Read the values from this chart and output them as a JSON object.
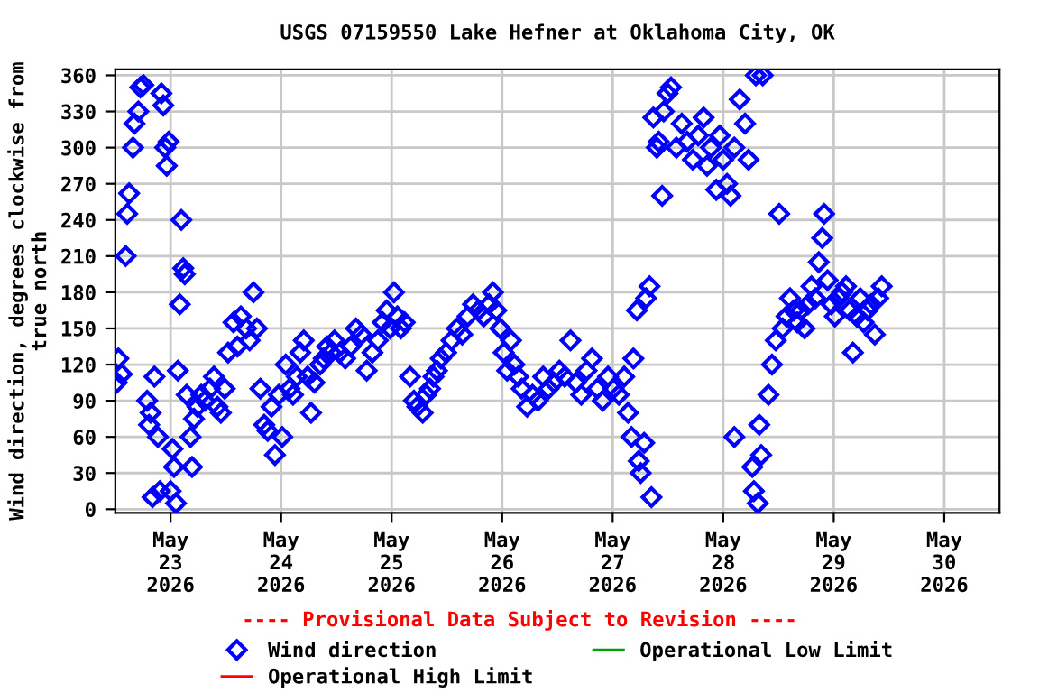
{
  "chart_data": {
    "type": "scatter",
    "title": "USGS 07159550 Lake Hefner at Oklahoma City, OK",
    "ylabel": "Wind direction, degrees clockwise from\ntrue north",
    "annotations": [
      "---- Provisional Data Subject to Revision ----"
    ],
    "xlim": [
      "2026-05-22T12:00",
      "2026-05-30T12:00"
    ],
    "xticks": [
      {
        "value": "2026-05-23",
        "label": "May\n23\n2026"
      },
      {
        "value": "2026-05-24",
        "label": "May\n24\n2026"
      },
      {
        "value": "2026-05-25",
        "label": "May\n25\n2026"
      },
      {
        "value": "2026-05-26",
        "label": "May\n26\n2026"
      },
      {
        "value": "2026-05-27",
        "label": "May\n27\n2026"
      },
      {
        "value": "2026-05-28",
        "label": "May\n28\n2026"
      },
      {
        "value": "2026-05-29",
        "label": "May\n29\n2026"
      },
      {
        "value": "2026-05-30",
        "label": "May\n30\n2026"
      }
    ],
    "ylim": [
      -3,
      365
    ],
    "yticks": [
      0,
      30,
      60,
      90,
      120,
      150,
      180,
      210,
      240,
      270,
      300,
      330,
      360
    ],
    "grid": true,
    "legend": "bottom",
    "marker": "diamond",
    "series": [
      {
        "name": "Wind direction",
        "color": "#0000ff",
        "x": [
          "2026-05-22T12:20",
          "2026-05-22T12:40",
          "2026-05-22T13:25",
          "2026-05-22T14:15",
          "2026-05-22T14:35",
          "2026-05-22T15:00",
          "2026-05-22T15:50",
          "2026-05-22T16:10",
          "2026-05-22T17:00",
          "2026-05-22T17:25",
          "2026-05-22T18:05",
          "2026-05-22T18:55",
          "2026-05-22T19:20",
          "2026-05-22T19:40",
          "2026-05-22T20:05",
          "2026-05-22T20:30",
          "2026-05-22T21:15",
          "2026-05-22T21:40",
          "2026-05-22T22:00",
          "2026-05-22T22:25",
          "2026-05-22T22:50",
          "2026-05-22T23:10",
          "2026-05-22T23:35",
          "2026-05-23T00:00",
          "2026-05-23T00:25",
          "2026-05-23T00:45",
          "2026-05-23T01:10",
          "2026-05-23T01:35",
          "2026-05-23T02:00",
          "2026-05-23T02:20",
          "2026-05-23T02:45",
          "2026-05-23T03:05",
          "2026-05-23T03:30",
          "2026-05-23T04:20",
          "2026-05-23T04:40",
          "2026-05-23T05:05",
          "2026-05-23T05:50",
          "2026-05-23T06:40",
          "2026-05-23T07:25",
          "2026-05-23T08:35",
          "2026-05-23T09:25",
          "2026-05-23T10:10",
          "2026-05-23T10:55",
          "2026-05-23T11:45",
          "2026-05-23T12:30",
          "2026-05-23T13:40",
          "2026-05-23T14:30",
          "2026-05-23T15:15",
          "2026-05-23T16:25",
          "2026-05-23T17:10",
          "2026-05-23T18:00",
          "2026-05-23T18:45",
          "2026-05-23T19:30",
          "2026-05-23T20:20",
          "2026-05-23T21:05",
          "2026-05-23T21:55",
          "2026-05-23T22:40",
          "2026-05-23T23:30",
          "2026-05-24T00:15",
          "2026-05-24T01:00",
          "2026-05-24T01:50",
          "2026-05-24T02:35",
          "2026-05-24T03:25",
          "2026-05-24T04:10",
          "2026-05-24T04:55",
          "2026-05-24T05:45",
          "2026-05-24T06:30",
          "2026-05-24T07:15",
          "2026-05-24T08:30",
          "2026-05-24T09:15",
          "2026-05-24T10:00",
          "2026-05-24T10:50",
          "2026-05-24T11:35",
          "2026-05-24T12:45",
          "2026-05-24T13:55",
          "2026-05-24T15:05",
          "2026-05-24T16:15",
          "2026-05-24T17:25",
          "2026-05-24T18:35",
          "2026-05-24T19:50",
          "2026-05-24T21:00",
          "2026-05-24T22:05",
          "2026-05-24T22:55",
          "2026-05-24T23:40",
          "2026-05-25T00:30",
          "2026-05-25T01:15",
          "2026-05-25T02:00",
          "2026-05-25T02:50",
          "2026-05-25T04:00",
          "2026-05-25T04:50",
          "2026-05-25T05:35",
          "2026-05-25T06:45",
          "2026-05-25T07:30",
          "2026-05-25T08:20",
          "2026-05-25T09:05",
          "2026-05-25T09:50",
          "2026-05-25T10:40",
          "2026-05-25T11:50",
          "2026-05-25T13:00",
          "2026-05-25T14:10",
          "2026-05-25T15:20",
          "2026-05-25T16:30",
          "2026-05-25T17:40",
          "2026-05-25T18:50",
          "2026-05-25T20:00",
          "2026-05-25T21:10",
          "2026-05-25T22:00",
          "2026-05-25T22:45",
          "2026-05-25T23:35",
          "2026-05-26T00:20",
          "2026-05-26T01:05",
          "2026-05-26T01:55",
          "2026-05-26T02:40",
          "2026-05-26T03:30",
          "2026-05-26T04:15",
          "2026-05-26T05:25",
          "2026-05-26T06:35",
          "2026-05-26T07:45",
          "2026-05-26T08:55",
          "2026-05-26T10:05",
          "2026-05-26T11:15",
          "2026-05-26T12:25",
          "2026-05-26T13:35",
          "2026-05-26T14:50",
          "2026-05-26T16:00",
          "2026-05-26T17:10",
          "2026-05-26T18:20",
          "2026-05-26T19:30",
          "2026-05-26T20:40",
          "2026-05-26T21:50",
          "2026-05-26T23:00",
          "2026-05-27T00:10",
          "2026-05-27T01:20",
          "2026-05-27T02:30",
          "2026-05-27T03:20",
          "2026-05-27T04:05",
          "2026-05-27T04:30",
          "2026-05-27T05:15",
          "2026-05-27T05:40",
          "2026-05-27T06:05",
          "2026-05-27T06:50",
          "2026-05-27T07:15",
          "2026-05-27T08:00",
          "2026-05-27T08:25",
          "2026-05-27T08:50",
          "2026-05-27T09:35",
          "2026-05-27T10:00",
          "2026-05-27T10:45",
          "2026-05-27T11:05",
          "2026-05-27T11:55",
          "2026-05-27T12:40",
          "2026-05-27T13:50",
          "2026-05-27T15:00",
          "2026-05-27T16:10",
          "2026-05-27T17:25",
          "2026-05-27T18:35",
          "2026-05-27T19:45",
          "2026-05-27T20:30",
          "2026-05-27T21:20",
          "2026-05-27T22:30",
          "2026-05-27T23:15",
          "2026-05-28T00:00",
          "2026-05-28T00:50",
          "2026-05-28T01:35",
          "2026-05-28T02:25",
          "2026-05-28T02:25",
          "2026-05-28T03:35",
          "2026-05-28T04:45",
          "2026-05-28T05:30",
          "2026-05-28T06:20",
          "2026-05-28T06:40",
          "2026-05-28T07:05",
          "2026-05-28T07:30",
          "2026-05-28T07:50",
          "2026-05-28T08:15",
          "2026-05-28T08:35",
          "2026-05-28T09:50",
          "2026-05-28T10:35",
          "2026-05-28T11:25",
          "2026-05-28T12:10",
          "2026-05-28T12:55",
          "2026-05-28T13:45",
          "2026-05-28T14:30",
          "2026-05-28T15:20",
          "2026-05-28T16:05",
          "2026-05-28T16:50",
          "2026-05-28T17:40",
          "2026-05-28T18:25",
          "2026-05-28T19:10",
          "2026-05-28T20:00",
          "2026-05-28T20:45",
          "2026-05-28T21:30",
          "2026-05-28T21:55",
          "2026-05-28T22:40",
          "2026-05-28T23:30",
          "2026-05-29T00:15",
          "2026-05-29T01:05",
          "2026-05-29T01:50",
          "2026-05-29T02:40",
          "2026-05-29T03:25",
          "2026-05-29T04:10",
          "2026-05-29T05:00",
          "2026-05-29T05:45",
          "2026-05-29T06:30",
          "2026-05-29T07:20",
          "2026-05-29T08:05",
          "2026-05-29T08:55",
          "2026-05-29T09:40",
          "2026-05-29T10:25"
        ],
        "values": [
          105,
          125,
          112,
          210,
          245,
          262,
          300,
          320,
          330,
          350,
          352,
          90,
          70,
          80,
          10,
          110,
          60,
          15,
          345,
          335,
          300,
          285,
          305,
          15,
          50,
          35,
          5,
          115,
          170,
          240,
          200,
          195,
          95,
          60,
          35,
          75,
          85,
          95,
          90,
          100,
          110,
          85,
          80,
          100,
          130,
          155,
          135,
          160,
          150,
          140,
          180,
          150,
          100,
          70,
          65,
          85,
          45,
          95,
          60,
          120,
          100,
          95,
          110,
          130,
          140,
          110,
          80,
          105,
          120,
          125,
          135,
          130,
          140,
          130,
          125,
          135,
          150,
          145,
          115,
          130,
          140,
          155,
          165,
          150,
          180,
          160,
          150,
          155,
          110,
          90,
          85,
          80,
          95,
          100,
          110,
          115,
          125,
          130,
          140,
          150,
          145,
          160,
          170,
          165,
          160,
          170,
          180,
          165,
          150,
          130,
          115,
          140,
          120,
          110,
          100,
          85,
          95,
          90,
          110,
          100,
          105,
          115,
          110,
          140,
          105,
          95,
          115,
          125,
          100,
          90,
          110,
          100,
          95,
          110,
          80,
          60,
          125,
          165,
          40,
          30,
          55,
          175,
          185,
          10,
          325,
          300,
          305,
          260,
          330,
          345,
          350,
          300,
          320,
          305,
          290,
          310,
          325,
          285,
          300,
          265,
          310,
          290,
          270,
          260,
          60,
          300,
          340,
          320,
          290,
          35,
          15,
          360,
          5,
          70,
          45,
          360,
          95,
          120,
          140,
          245,
          150,
          160,
          175,
          165,
          155,
          165,
          150,
          170,
          185,
          175,
          205,
          225,
          245,
          190,
          170,
          160,
          175,
          180,
          185,
          165,
          130,
          160,
          175,
          155,
          165,
          170,
          145,
          175,
          185
        ]
      },
      {
        "name": "Operational Low Limit",
        "type": "line",
        "color": "#00a000"
      },
      {
        "name": "Operational High Limit",
        "type": "line",
        "color": "#ff0000"
      }
    ]
  }
}
